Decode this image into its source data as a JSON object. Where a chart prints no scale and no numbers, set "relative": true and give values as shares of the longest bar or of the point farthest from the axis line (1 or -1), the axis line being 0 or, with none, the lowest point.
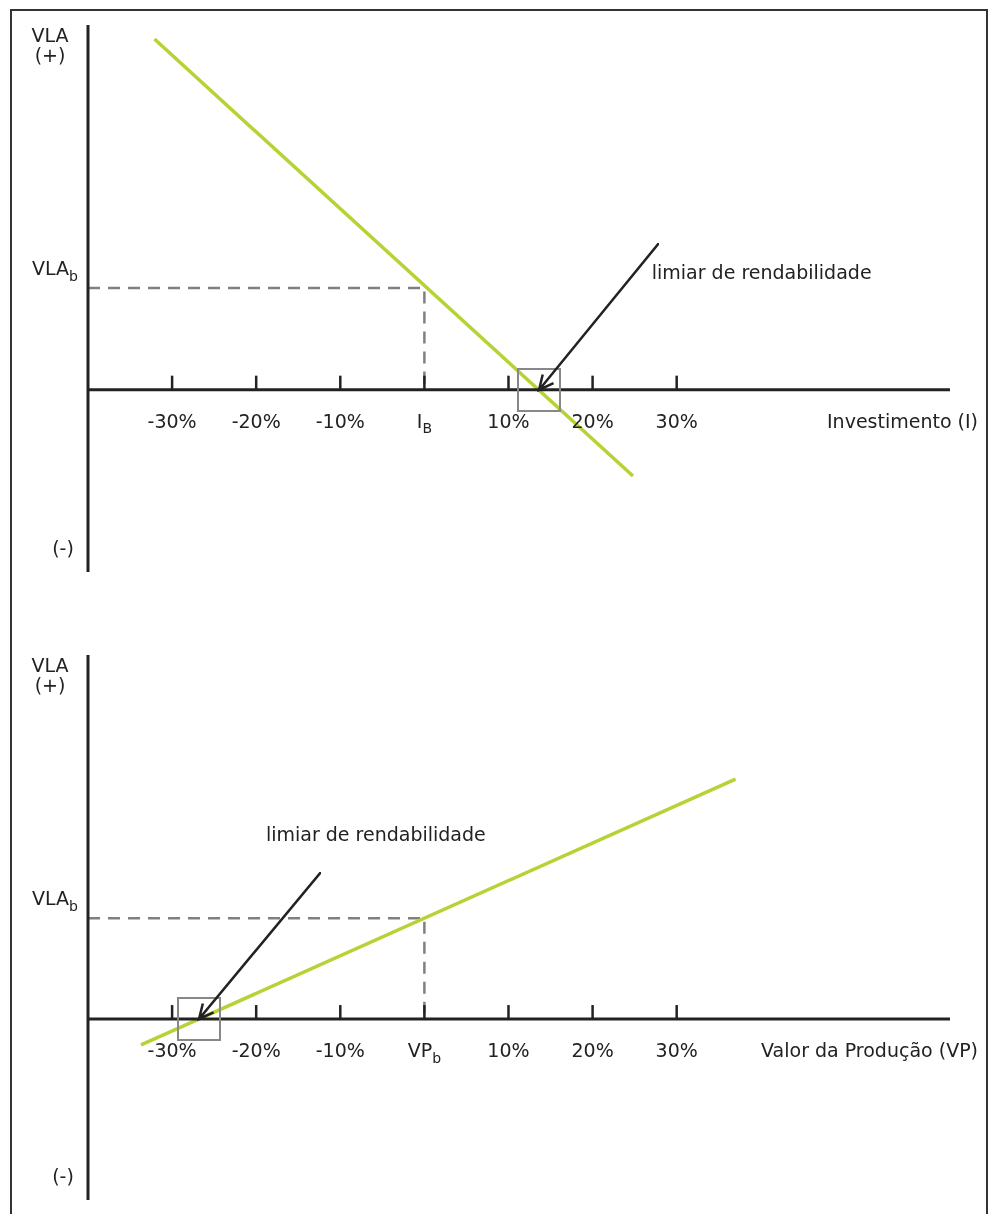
{
  "chart_data": [
    {
      "type": "line",
      "relative": true,
      "marker": "none",
      "xlabel": "Investimento (I)",
      "ylabel": "VLA",
      "xlim": [
        -40,
        62.5
      ],
      "xticks": [
        {
          "value": -30,
          "label": "-30%"
        },
        {
          "value": -20,
          "label": "-20%"
        },
        {
          "value": -10,
          "label": "-10%"
        },
        {
          "value": 0,
          "label": "I$_{B}$"
        },
        {
          "value": 10,
          "label": "10%"
        },
        {
          "value": 20,
          "label": "20%"
        },
        {
          "value": 30,
          "label": "30%"
        }
      ],
      "series": [
        {
          "color": "#b5d334",
          "x": [
            -32.1,
            24.8
          ],
          "values": [
            1,
            -0.246
          ]
        },
        {
          "color": "#808080",
          "line_style": "dashed",
          "x": [
            -40,
            0,
            0
          ],
          "values": [
            0.29,
            0.29,
            0
          ]
        }
      ],
      "annotations": [
        "(+)",
        "(-)",
        "VLA$_{b}$",
        {
          "text": "limiar de rendabilidade",
          "x": 13.6,
          "y": 0
        }
      ]
    },
    {
      "type": "line",
      "relative": true,
      "marker": "none",
      "xlabel": "Valor da Produção (VP)",
      "ylabel": "VLA",
      "xlim": [
        -40,
        62.5
      ],
      "xticks": [
        {
          "value": -30,
          "label": "-30%"
        },
        {
          "value": -20,
          "label": "-20%"
        },
        {
          "value": -10,
          "label": "-10%"
        },
        {
          "value": 0,
          "label": "VP$_{b}$"
        },
        {
          "value": 10,
          "label": "10%"
        },
        {
          "value": 20,
          "label": "20%"
        },
        {
          "value": 30,
          "label": "30%"
        }
      ],
      "series": [
        {
          "color": "#b5d334",
          "x": [
            -33.7,
            37
          ],
          "values": [
            -0.108,
            1
          ]
        },
        {
          "color": "#808080",
          "line_style": "dashed",
          "x": [
            -40,
            0,
            0
          ],
          "values": [
            0.42,
            0.42,
            0
          ]
        }
      ],
      "annotations": [
        "(+)",
        "(-)",
        "VLA$_{b}$",
        "limiar de rendabilidade"
      ]
    }
  ]
}
